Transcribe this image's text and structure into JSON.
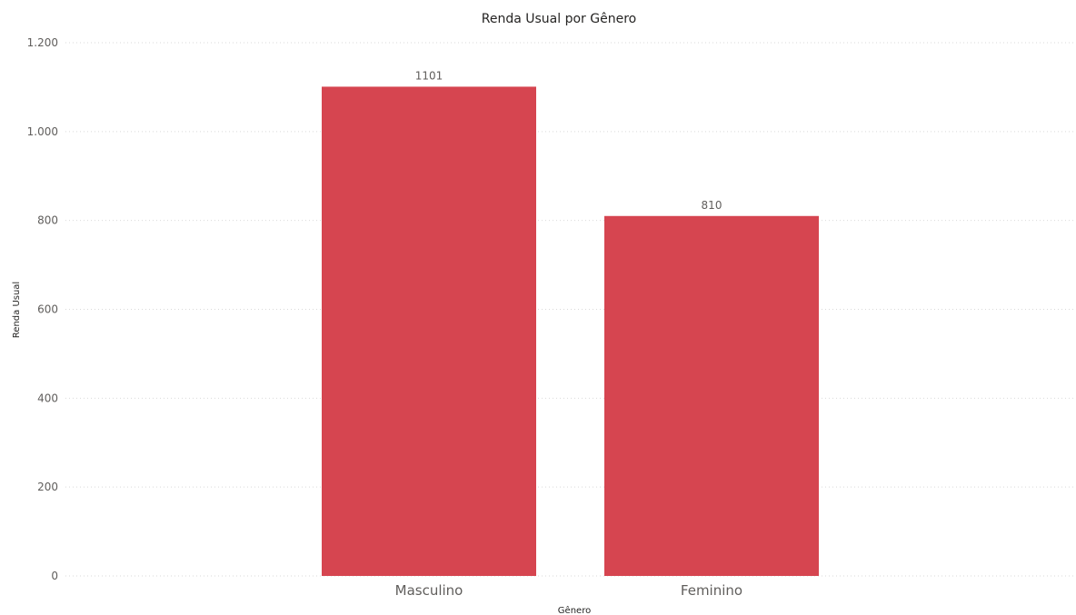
{
  "chart_data": {
    "type": "bar",
    "title": "Renda Usual por Gênero",
    "xlabel": "Gênero",
    "ylabel": "Renda Usual",
    "categories": [
      "Masculino",
      "Feminino"
    ],
    "values": [
      1101,
      810
    ],
    "data_labels": [
      "1101",
      "810"
    ],
    "ylim": [
      0,
      1200
    ],
    "yticks": [
      0,
      200,
      400,
      600,
      800,
      1000,
      1200
    ],
    "ytick_labels": [
      "0",
      "200",
      "400",
      "600",
      "800",
      "1.000",
      "1.200"
    ],
    "grid": true,
    "bar_color": "#d64550"
  }
}
